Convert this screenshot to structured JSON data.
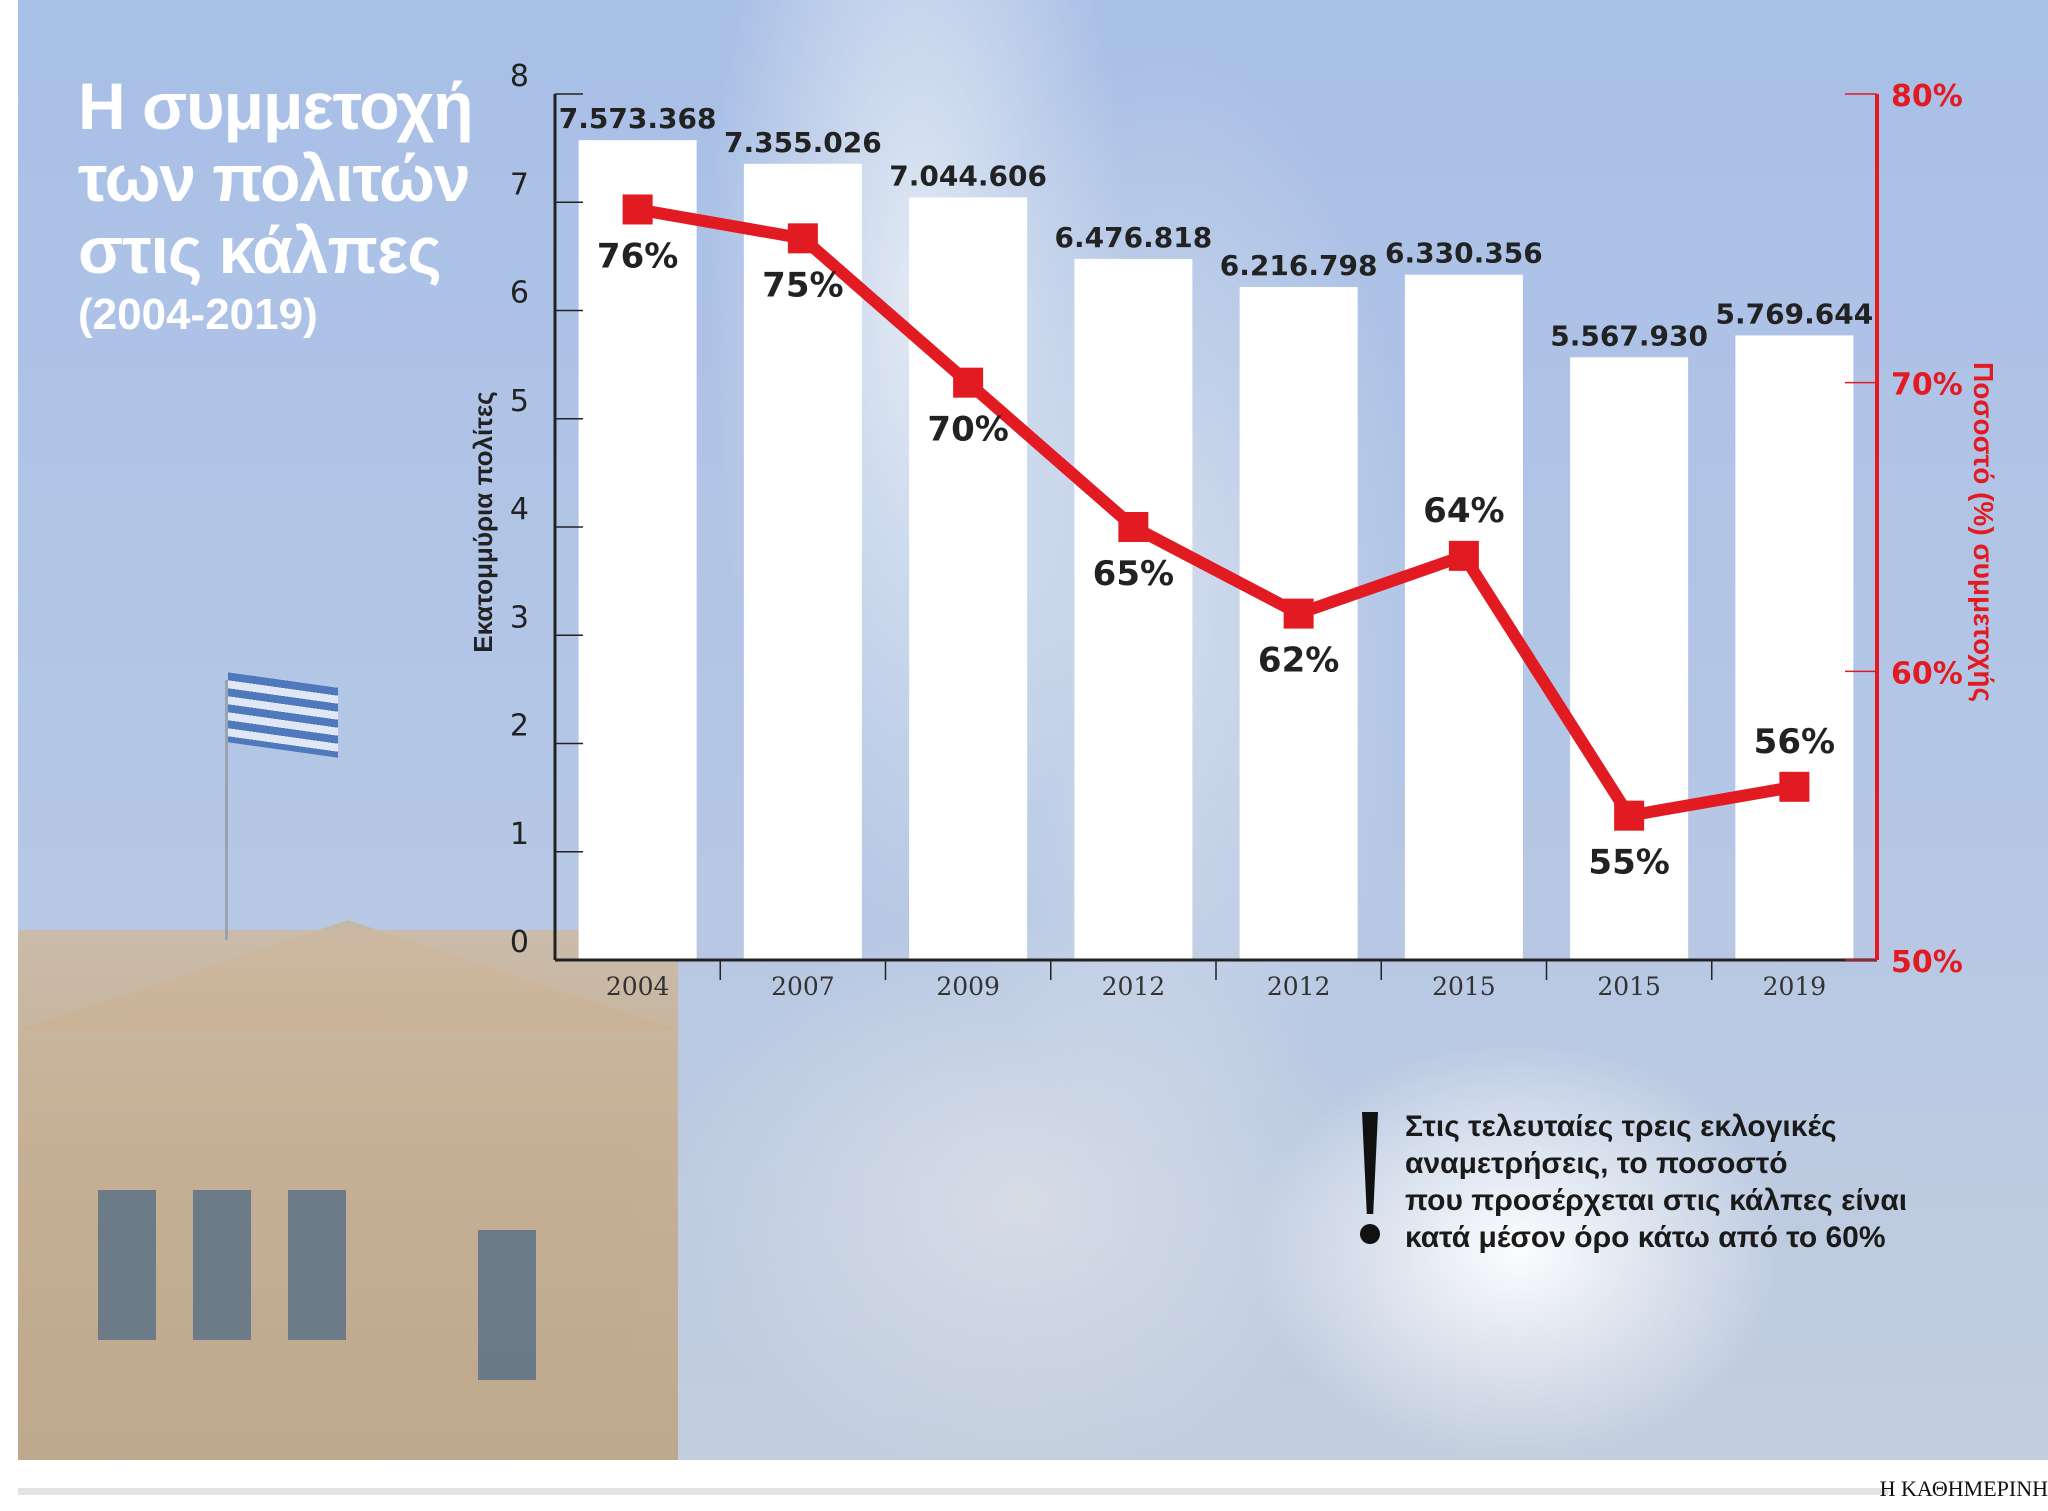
{
  "title_lines": [
    "Η συμμετοχή",
    "των πολιτών",
    "στις κάλπες"
  ],
  "subtitle": "(2004-2019)",
  "note_lines": [
    "Στις τελευταίες τρεις εκλογικές",
    "αναμετρήσεις, το ποσοστό",
    "που προσέρχεται στις κάλπες είναι",
    "κατά μέσον όρο κάτω από το 60%"
  ],
  "logo": "Η ΚΑΘΗΜΕΡΙΝΗ",
  "colors": {
    "bars": "#ffffff",
    "line": "#e21b23",
    "background": "#a8bfe6"
  },
  "chart_data": {
    "type": "bar+line",
    "categories": [
      "2004",
      "2007",
      "2009",
      "2012",
      "2012",
      "2015",
      "2015",
      "2019"
    ],
    "series": [
      {
        "type": "bar",
        "axis": "left",
        "values": [
          7573368,
          7355026,
          7044606,
          6476818,
          6216798,
          6330356,
          5567930,
          5769644
        ],
        "labels": [
          "7.573.368",
          "7.355.026",
          "7.044.606",
          "6.476.818",
          "6.216.798",
          "6.330.356",
          "5.567.930",
          "5.769.644"
        ]
      },
      {
        "type": "line",
        "axis": "right",
        "values": [
          76,
          75,
          70,
          65,
          62,
          64,
          55,
          56
        ],
        "labels": [
          "76%",
          "75%",
          "70%",
          "65%",
          "62%",
          "64%",
          "55%",
          "56%"
        ]
      }
    ],
    "ylabel": "Εκατομμύρια πολίτες",
    "ylim": [
      0,
      8
    ],
    "yticks": [
      "0",
      "1",
      "2",
      "3",
      "4",
      "5",
      "6",
      "7",
      "8"
    ],
    "y2label": "Ποσοστό (%) συμμετοχής",
    "y2lim": [
      50,
      80
    ],
    "y2ticks": [
      "50%",
      "60%",
      "70%",
      "80%"
    ],
    "grid": false,
    "legend": "none"
  }
}
